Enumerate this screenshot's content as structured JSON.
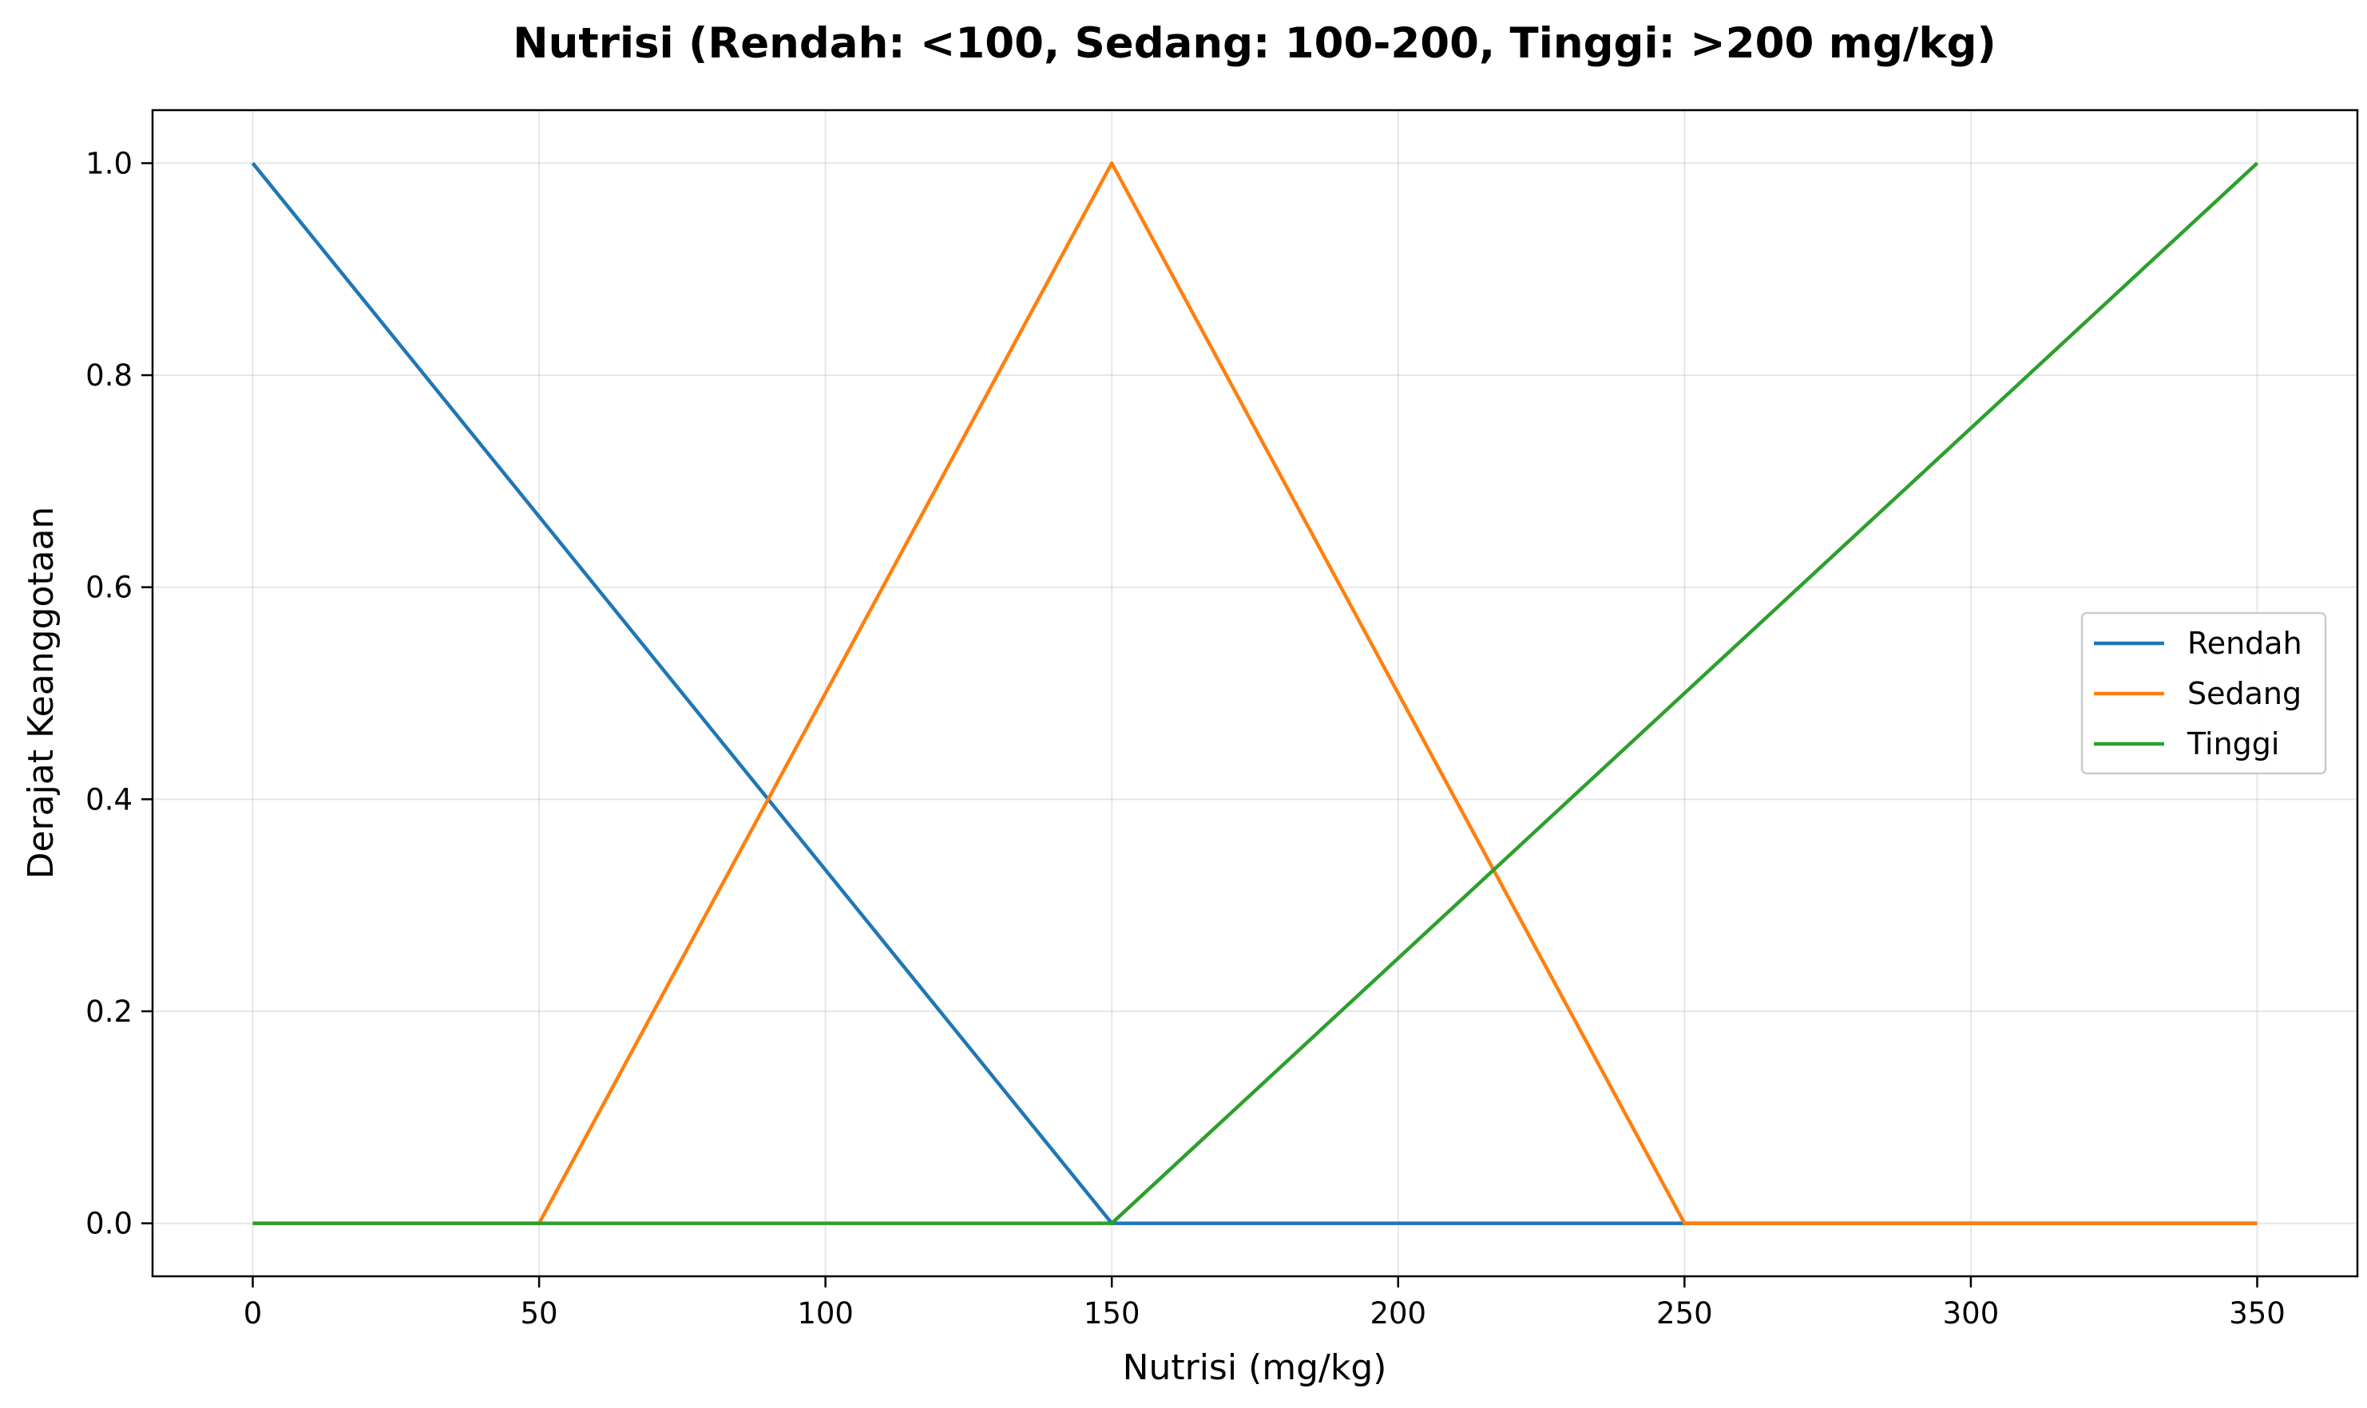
{
  "chart_data": {
    "type": "line",
    "title": "Nutrisi (Rendah: <100, Sedang: 100-200, Tinggi: >200 mg/kg)",
    "xlabel": "Nutrisi (mg/kg)",
    "ylabel": "Derajat Keanggotaan",
    "xlim": [
      -17.5,
      367.5
    ],
    "ylim": [
      -0.05,
      1.05
    ],
    "x_ticks": [
      0,
      50,
      100,
      150,
      200,
      250,
      300,
      350
    ],
    "y_ticks": [
      0.0,
      0.2,
      0.4,
      0.6,
      0.8,
      1.0
    ],
    "x_tick_labels": [
      "0",
      "50",
      "100",
      "150",
      "200",
      "250",
      "300",
      "350"
    ],
    "y_tick_labels": [
      "0.0",
      "0.2",
      "0.4",
      "0.6",
      "0.8",
      "1.0"
    ],
    "grid": true,
    "legend_position": "center-right",
    "series": [
      {
        "name": "Rendah",
        "color": "#1f77b4",
        "x": [
          0,
          150,
          350
        ],
        "y": [
          1.0,
          0.0,
          0.0
        ]
      },
      {
        "name": "Sedang",
        "color": "#ff7f0e",
        "x": [
          0,
          50,
          150,
          250,
          350
        ],
        "y": [
          0.0,
          0.0,
          1.0,
          0.0,
          0.0
        ]
      },
      {
        "name": "Tinggi",
        "color": "#2ca02c",
        "x": [
          0,
          150,
          350
        ],
        "y": [
          0.0,
          0.0,
          1.0
        ]
      }
    ]
  }
}
